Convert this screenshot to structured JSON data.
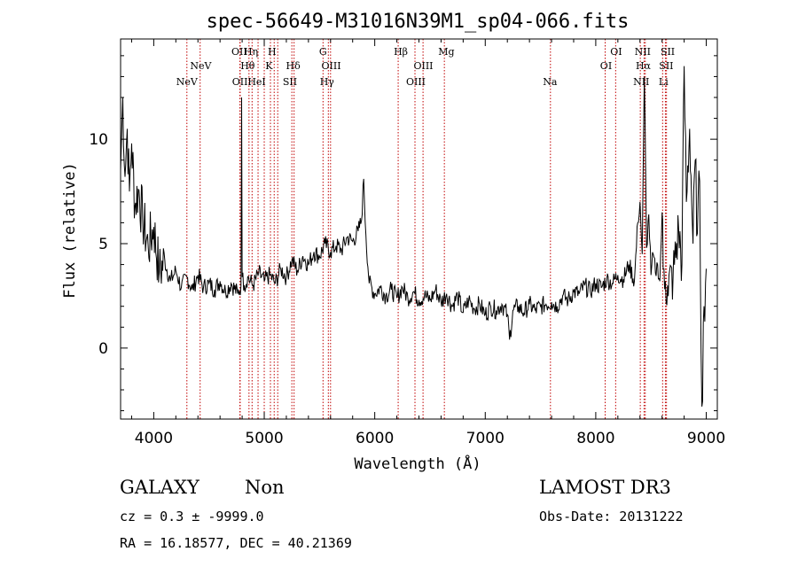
{
  "chart_data": {
    "type": "line",
    "title": "spec-56649-M31016N39M1_sp04-066.fits",
    "xlabel": "Wavelength (Å)",
    "ylabel": "Flux (relative)",
    "xlim": [
      3700,
      9100
    ],
    "ylim": [
      -3.4,
      14.8
    ],
    "x_ticks": [
      4000,
      5000,
      6000,
      7000,
      8000,
      9000
    ],
    "y_ticks": [
      0,
      5,
      10
    ],
    "series": [
      {
        "name": "flux",
        "x": [
          3700,
          3720,
          3740,
          3760,
          3780,
          3800,
          3830,
          3860,
          3900,
          3950,
          4000,
          4050,
          4100,
          4150,
          4200,
          4250,
          4300,
          4350,
          4400,
          4450,
          4500,
          4550,
          4600,
          4650,
          4700,
          4760,
          4790,
          4795,
          4800,
          4820,
          4850,
          4900,
          4950,
          5000,
          5050,
          5100,
          5150,
          5200,
          5250,
          5300,
          5350,
          5400,
          5450,
          5500,
          5550,
          5600,
          5650,
          5700,
          5750,
          5800,
          5850,
          5880,
          5900,
          5920,
          5950,
          6000,
          6050,
          6100,
          6150,
          6200,
          6250,
          6300,
          6350,
          6400,
          6450,
          6500,
          6550,
          6600,
          6650,
          6700,
          6750,
          6800,
          6850,
          6900,
          6950,
          7000,
          7050,
          7100,
          7150,
          7200,
          7220,
          7250,
          7300,
          7350,
          7400,
          7450,
          7500,
          7550,
          7600,
          7650,
          7700,
          7750,
          7800,
          7850,
          7900,
          7950,
          8000,
          8050,
          8100,
          8150,
          8200,
          8250,
          8300,
          8350,
          8380,
          8400,
          8420,
          8440,
          8460,
          8480,
          8500,
          8520,
          8540,
          8560,
          8580,
          8600,
          8610,
          8630,
          8650,
          8700,
          8750,
          8780,
          8800,
          8820,
          8850,
          8880,
          8900,
          8920,
          8940,
          8960,
          8980,
          9000
        ],
        "y": [
          8.5,
          12.0,
          8.2,
          10.5,
          7.5,
          9.8,
          6.8,
          7.6,
          6.2,
          4.8,
          5.8,
          3.6,
          4.2,
          3.2,
          3.7,
          2.9,
          3.4,
          2.8,
          3.5,
          2.9,
          3.1,
          2.8,
          3.2,
          2.7,
          3.1,
          2.6,
          3.0,
          12.0,
          3.4,
          3.0,
          3.4,
          3.0,
          3.6,
          3.2,
          3.5,
          3.1,
          3.8,
          3.4,
          4.2,
          3.7,
          4.4,
          4.0,
          4.6,
          4.4,
          5.0,
          4.6,
          4.9,
          4.7,
          5.3,
          5.1,
          5.6,
          6.1,
          8.1,
          5.4,
          3.1,
          2.6,
          2.9,
          2.5,
          2.8,
          2.4,
          2.9,
          2.4,
          2.7,
          2.3,
          2.5,
          2.3,
          2.8,
          2.2,
          2.6,
          2.0,
          2.5,
          1.7,
          2.3,
          1.9,
          2.1,
          1.6,
          2.0,
          1.8,
          2.1,
          1.6,
          0.4,
          1.8,
          2.0,
          1.7,
          2.1,
          1.8,
          2.0,
          2.1,
          2.2,
          2.0,
          2.5,
          2.3,
          2.7,
          2.6,
          3.0,
          2.7,
          3.1,
          2.9,
          3.3,
          3.1,
          3.5,
          3.3,
          4.0,
          3.2,
          6.0,
          7.0,
          4.5,
          13.0,
          4.8,
          6.4,
          3.5,
          4.5,
          3.6,
          4.0,
          3.2,
          6.5,
          3.8,
          3.2,
          3.0,
          3.4,
          5.7,
          4.0,
          13.5,
          7.0,
          10.5,
          5.0,
          9.0,
          5.5,
          8.0,
          -2.8,
          2.0,
          3.8
        ]
      }
    ],
    "line_positions": [
      4300,
      4420,
      4780,
      4782,
      4862,
      4890,
      4944,
      5000,
      5056,
      5090,
      5122,
      5250,
      5270,
      5532,
      5580,
      5600,
      6212,
      6364,
      6437,
      6630,
      7590,
      8085,
      8180,
      8403,
      8437,
      8448,
      8605,
      8630,
      8640
    ],
    "line_labels": [
      {
        "text": "NeV",
        "x": 4300,
        "row": 3
      },
      {
        "text": "NeV",
        "x": 4426,
        "row": 2
      },
      {
        "text": "OII",
        "x": 4774,
        "row": 1
      },
      {
        "text": "OII",
        "x": 4780,
        "row": 3
      },
      {
        "text": "Hη",
        "x": 4880,
        "row": 1
      },
      {
        "text": "Hθ",
        "x": 4850,
        "row": 2
      },
      {
        "text": "HeI",
        "x": 4932,
        "row": 3
      },
      {
        "text": "H",
        "x": 5070,
        "row": 1
      },
      {
        "text": "K",
        "x": 5043,
        "row": 2
      },
      {
        "text": "Hδ",
        "x": 5262,
        "row": 2
      },
      {
        "text": "SII",
        "x": 5232,
        "row": 3
      },
      {
        "text": "G",
        "x": 5532,
        "row": 1
      },
      {
        "text": "OIII",
        "x": 5606,
        "row": 2
      },
      {
        "text": "Hγ",
        "x": 5568,
        "row": 3
      },
      {
        "text": "Hβ",
        "x": 6236,
        "row": 1
      },
      {
        "text": "OIII",
        "x": 6440,
        "row": 2
      },
      {
        "text": "OIII",
        "x": 6372,
        "row": 3
      },
      {
        "text": "Mg",
        "x": 6648,
        "row": 1
      },
      {
        "text": "Na",
        "x": 7586,
        "row": 3
      },
      {
        "text": "OI",
        "x": 8185,
        "row": 1
      },
      {
        "text": "OI",
        "x": 8093,
        "row": 2
      },
      {
        "text": "NII",
        "x": 8425,
        "row": 1
      },
      {
        "text": "Hα",
        "x": 8430,
        "row": 2
      },
      {
        "text": "NII",
        "x": 8412,
        "row": 3
      },
      {
        "text": "SII",
        "x": 8651,
        "row": 1
      },
      {
        "text": "SII",
        "x": 8638,
        "row": 2
      },
      {
        "text": "Li",
        "x": 8613,
        "row": 3
      }
    ]
  },
  "info": {
    "object_class": "GALAXY",
    "subclass": "Non",
    "survey": "LAMOST DR3",
    "cz": "cz = 0.3 ± -9999.0",
    "obs_date": "Obs-Date: 20131222",
    "coords": "RA =  16.18577, DEC =  40.21369"
  },
  "colors": {
    "line_marker": "#c00000",
    "flux": "#000000"
  }
}
